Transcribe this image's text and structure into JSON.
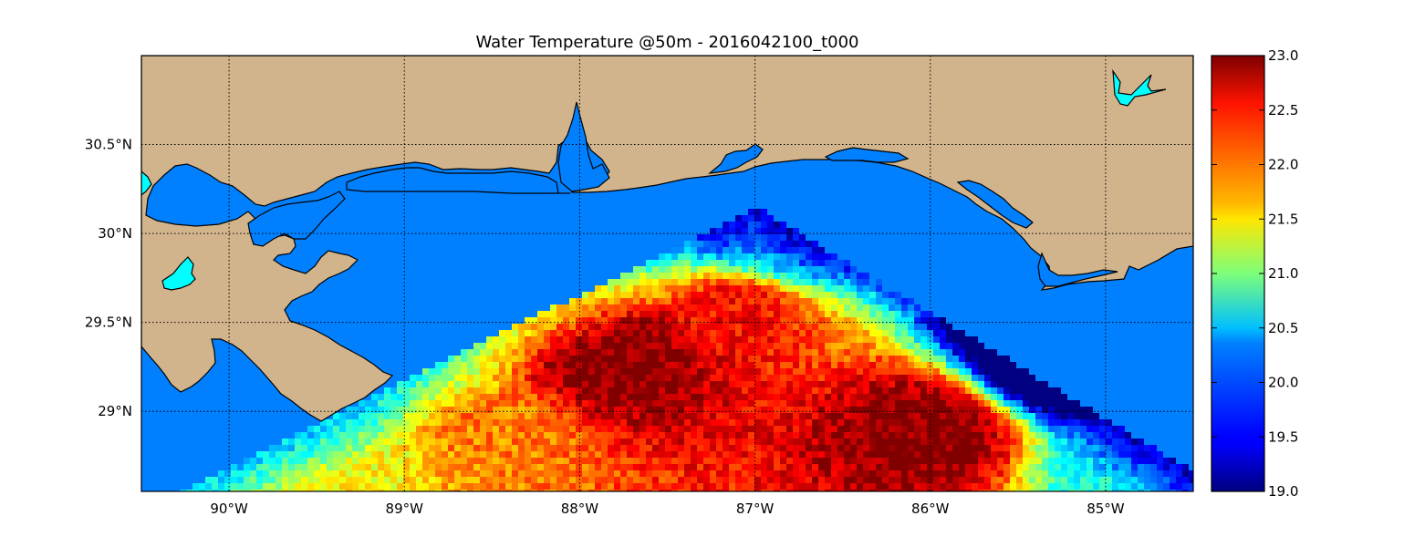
{
  "title": "Water Temperature @50m - 2016042100_t000",
  "map": {
    "lon_range": [
      -90.5,
      -84.5
    ],
    "lat_range": [
      28.55,
      31.0
    ],
    "lon_ticks": [
      {
        "value": -90,
        "label": "90°W"
      },
      {
        "value": -89,
        "label": "89°W"
      },
      {
        "value": -88,
        "label": "88°W"
      },
      {
        "value": -87,
        "label": "87°W"
      },
      {
        "value": -86,
        "label": "86°W"
      },
      {
        "value": -85,
        "label": "85°W"
      }
    ],
    "lat_ticks": [
      {
        "value": 30.5,
        "label": "30.5°N"
      },
      {
        "value": 30.0,
        "label": "30°N"
      },
      {
        "value": 29.5,
        "label": "29.5°N"
      },
      {
        "value": 29.0,
        "label": "29°N"
      }
    ],
    "grid": true,
    "land_color": "#d2b48c",
    "masked_water_color": "#0080ff",
    "lake_color": "#00ffff"
  },
  "colorbar": {
    "min": 19.0,
    "max": 23.0,
    "ticks": [
      "23.0",
      "22.5",
      "22.0",
      "21.5",
      "21.0",
      "20.5",
      "20.0",
      "19.5",
      "19.0"
    ],
    "colormap": "jet"
  },
  "chart_data": {
    "type": "heatmap",
    "title": "Water Temperature @50m - 2016042100_t000",
    "x_ticks": [
      "90°W",
      "89°W",
      "88°W",
      "87°W",
      "86°W",
      "85°W"
    ],
    "y_ticks": [
      "30.5°N",
      "30°N",
      "29.5°N",
      "29°N"
    ],
    "xlim": [
      -90.5,
      -84.5
    ],
    "ylim": [
      28.55,
      31.0
    ],
    "value_range": [
      19.0,
      23.0
    ],
    "temperature_regions": [
      {
        "lon": -86.0,
        "lat": 28.9,
        "value": 23.0
      },
      {
        "lon": -87.8,
        "lat": 29.3,
        "value": 23.0
      },
      {
        "lon": -87.1,
        "lat": 29.6,
        "value": 22.5
      },
      {
        "lon": -88.5,
        "lat": 28.9,
        "value": 22.0
      },
      {
        "lon": -89.3,
        "lat": 28.8,
        "value": 21.5
      },
      {
        "lon": -86.9,
        "lat": 29.9,
        "value": 20.5
      },
      {
        "lon": -85.3,
        "lat": 29.3,
        "value": 19.0
      },
      {
        "lon": -84.8,
        "lat": 28.7,
        "value": 20.5
      }
    ]
  }
}
